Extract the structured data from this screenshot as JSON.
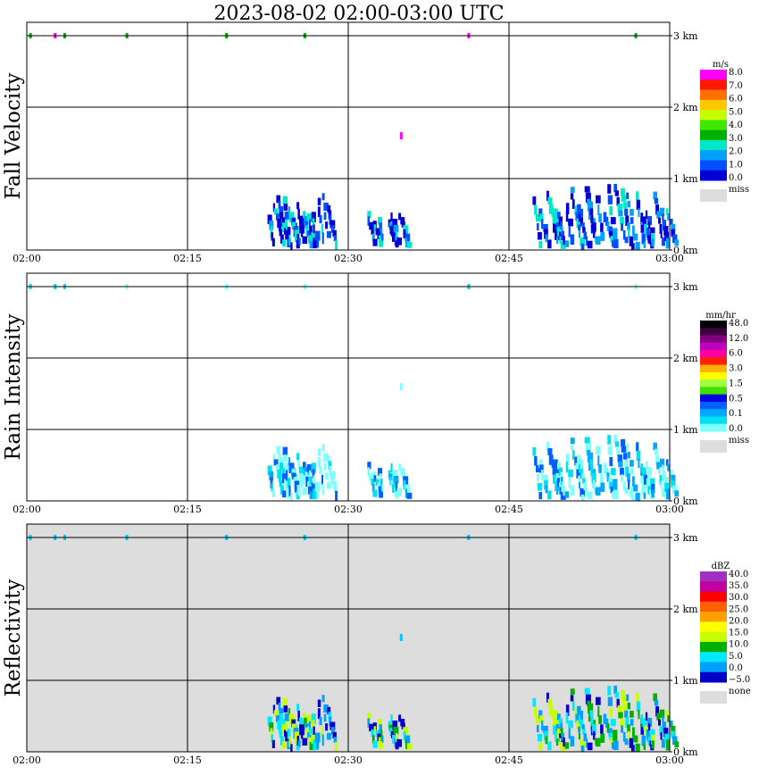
{
  "title": "2023-08-02   02:00-03:00 UTC",
  "chart_data": [
    {
      "type": "heatmap",
      "ylabel": "Fall Velocity",
      "background": "#ffffff",
      "xticks": [
        "02:00",
        "02:15",
        "02:30",
        "02:45",
        "03:00"
      ],
      "yticks": [
        "0 km",
        "1 km",
        "2 km",
        "3 km"
      ],
      "xlim": [
        0,
        60
      ],
      "ylim_km": [
        0,
        3.2
      ],
      "legend": {
        "unit": "m/s",
        "colors": [
          "#0000d6",
          "#0050ff",
          "#00a0ff",
          "#00e8c8",
          "#00b000",
          "#40e800",
          "#c8ff00",
          "#ffc800",
          "#ff7000",
          "#ff1800",
          "#ff00ff"
        ],
        "labels": [
          "0.0",
          "1.0",
          "2.0",
          "3.0",
          "4.0",
          "5.0",
          "6.0",
          "7.0",
          "8.0"
        ],
        "miss_label": "miss",
        "miss_color": "#dddddd"
      },
      "palette": [
        "#0000d6",
        "#0050ff",
        "#0000d6",
        "#00a0ff",
        "#00e8c8"
      ],
      "near_top_marks": [
        {
          "t": 0.3,
          "color": "#00b000"
        },
        {
          "t": 2.6,
          "color": "#ff00ff"
        },
        {
          "t": 3.5,
          "color": "#00b000"
        },
        {
          "t": 9.3,
          "color": "#00b000"
        },
        {
          "t": 18.6,
          "color": "#00b000"
        },
        {
          "t": 25.9,
          "color": "#00b000"
        },
        {
          "t": 41.2,
          "color": "#ff00ff"
        },
        {
          "t": 56.8,
          "color": "#00b000"
        }
      ],
      "isolated_echo": {
        "t": 34.9,
        "km": 1.6,
        "color": "#ff00ff"
      }
    },
    {
      "type": "heatmap",
      "ylabel": "Rain Intensity",
      "background": "#ffffff",
      "xticks": [
        "02:00",
        "02:15",
        "02:30",
        "02:45",
        "03:00"
      ],
      "yticks": [
        "0 km",
        "1 km",
        "2 km",
        "3 km"
      ],
      "xlim": [
        0,
        60
      ],
      "ylim_km": [
        0,
        3.2
      ],
      "legend": {
        "unit": "mm/hr",
        "colors": [
          "#80ffff",
          "#00e0f0",
          "#00a8ff",
          "#0060ff",
          "#0000e0",
          "#40e000",
          "#a0ff40",
          "#ffff00",
          "#ffb000",
          "#ff2000",
          "#ff00a0",
          "#c000c0",
          "#800080",
          "#400040",
          "#000000"
        ],
        "labels": [
          "0.0",
          "0.1",
          "0.5",
          "1.5",
          "3.0",
          "6.0",
          "12.0",
          "48.0"
        ],
        "miss_label": "miss",
        "miss_color": "#dddddd"
      },
      "palette": [
        "#80ffff",
        "#80ffff",
        "#00e0f0",
        "#00a8ff",
        "#0060ff"
      ],
      "near_top_marks": [
        {
          "t": 0.3,
          "color": "#00e0f0"
        },
        {
          "t": 2.6,
          "color": "#00e0f0"
        },
        {
          "t": 3.5,
          "color": "#00e0f0"
        },
        {
          "t": 9.3,
          "color": "#80ffff"
        },
        {
          "t": 18.6,
          "color": "#80ffff"
        },
        {
          "t": 25.9,
          "color": "#80ffff"
        },
        {
          "t": 41.2,
          "color": "#00e0f0"
        },
        {
          "t": 56.8,
          "color": "#80ffff"
        }
      ],
      "isolated_echo": {
        "t": 34.9,
        "km": 1.6,
        "color": "#80ffff"
      }
    },
    {
      "type": "heatmap",
      "ylabel": "Reflectivity",
      "background": "#dddddd",
      "xticks": [
        "02:00",
        "02:15",
        "02:30",
        "02:45",
        "03:00"
      ],
      "yticks": [
        "0 km",
        "1 km",
        "2 km",
        "3 km"
      ],
      "xlim": [
        0,
        60
      ],
      "ylim_km": [
        0,
        3.2
      ],
      "legend": {
        "unit": "dBZ",
        "colors": [
          "#0000c8",
          "#00a0ff",
          "#00e8ff",
          "#00b000",
          "#c8ff00",
          "#ffff00",
          "#ffa000",
          "#ff6000",
          "#ff0000",
          "#c000a0",
          "#a030c0"
        ],
        "labels": [
          "−5.0",
          "0.0",
          "5.0",
          "10.0",
          "15.0",
          "20.0",
          "25.0",
          "30.0",
          "35.0",
          "40.0"
        ],
        "miss_label": "none",
        "miss_color": "#dddddd"
      },
      "palette": [
        "#0000c8",
        "#00a0ff",
        "#00e8ff",
        "#00b000",
        "#c8ff00"
      ],
      "near_top_marks": [
        {
          "t": 0.3,
          "color": "#00c8ff"
        },
        {
          "t": 2.6,
          "color": "#00c8ff"
        },
        {
          "t": 3.5,
          "color": "#00c8ff"
        },
        {
          "t": 9.3,
          "color": "#00c8ff"
        },
        {
          "t": 18.6,
          "color": "#00c8ff"
        },
        {
          "t": 25.9,
          "color": "#00c8ff"
        },
        {
          "t": 41.2,
          "color": "#00c8ff"
        },
        {
          "t": 56.8,
          "color": "#00c8ff"
        }
      ],
      "isolated_echo": {
        "t": 34.9,
        "km": 1.6,
        "color": "#00c8ff"
      }
    }
  ],
  "echo_clusters": [
    {
      "t0": 22.3,
      "t1": 28.2,
      "km_max": 0.8,
      "streaks": 13
    },
    {
      "t0": 31.4,
      "t1": 35.2,
      "km_max": 0.65,
      "streaks": 6
    },
    {
      "t0": 47.0,
      "t1": 60.0,
      "km_max": 0.95,
      "streaks": 22
    }
  ]
}
